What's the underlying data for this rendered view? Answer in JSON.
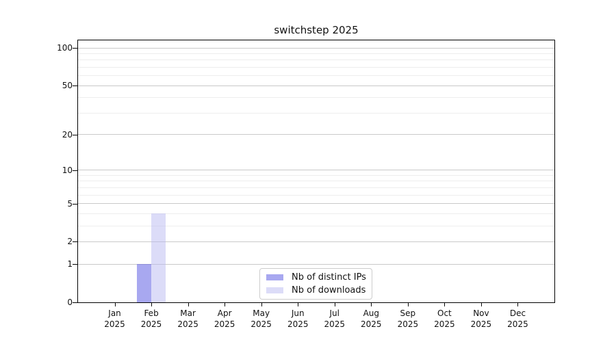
{
  "title": "switchstep 2025",
  "chart_data": {
    "type": "bar",
    "title": "switchstep 2025",
    "categories": [
      "Jan 2025",
      "Feb 2025",
      "Mar 2025",
      "Apr 2025",
      "May 2025",
      "Jun 2025",
      "Jul 2025",
      "Aug 2025",
      "Sep 2025",
      "Oct 2025",
      "Nov 2025",
      "Dec 2025"
    ],
    "series": [
      {
        "name": "Nb of distinct IPs",
        "color": "#a8a8f0",
        "values": [
          0,
          1,
          0,
          0,
          0,
          0,
          0,
          0,
          0,
          0,
          0,
          0
        ]
      },
      {
        "name": "Nb of downloads",
        "color": "#dcdcf8",
        "values": [
          0,
          4,
          0,
          0,
          0,
          0,
          0,
          0,
          0,
          0,
          0,
          0
        ]
      }
    ],
    "y_scale": "log1p",
    "y_major_ticks": [
      0,
      1,
      2,
      5,
      10,
      20,
      50,
      100
    ],
    "y_minor_ticks": [
      3,
      4,
      6,
      7,
      8,
      9,
      30,
      40,
      60,
      70,
      80,
      90
    ],
    "ylim": [
      0,
      115
    ],
    "grid": "horizontal",
    "legend_position": "lower-center-inside"
  },
  "colors": {
    "axis": "#000000",
    "major_grid": "#c9c9c9",
    "minor_grid": "#ededed",
    "legend_border": "#cccccc"
  }
}
